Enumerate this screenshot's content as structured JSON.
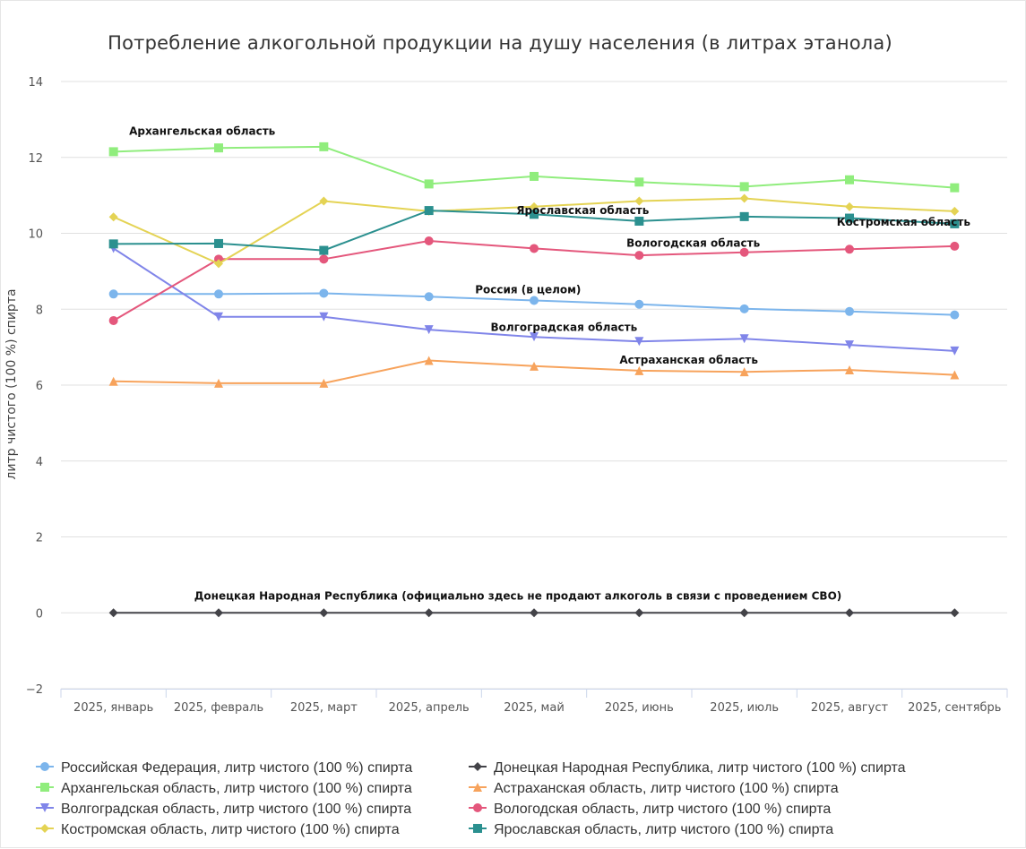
{
  "chart_data": {
    "type": "line",
    "title": "Потребление алкогольной продукции на душу населения (в литрах этанола)",
    "ylabel": "литр чистого (100 %) спирта",
    "xlabel": "",
    "ylim": [
      -2,
      14
    ],
    "yticks": [
      -2,
      0,
      2,
      4,
      6,
      8,
      10,
      12,
      14
    ],
    "grid": true,
    "legend_position": "bottom",
    "categories": [
      "2025, январь",
      "2025, февраль",
      "2025, март",
      "2025, апрель",
      "2025, май",
      "2025, июнь",
      "2025, июль",
      "2025, август",
      "2025, сентябрь"
    ],
    "series": [
      {
        "name": "Российская Федерация, литр чистого (100 %) спирта",
        "color": "#7cb5ec",
        "marker": "circle",
        "values": [
          8.4,
          8.4,
          8.42,
          8.33,
          8.23,
          8.13,
          8.01,
          7.94,
          7.85
        ]
      },
      {
        "name": "Донецкая Народная Республика, литр чистого (100 %) спирта",
        "color": "#434348",
        "marker": "diamond",
        "values": [
          0,
          0,
          0,
          0,
          0,
          0,
          0,
          0,
          0
        ]
      },
      {
        "name": "Архангельская область, литр чистого (100 %) спирта",
        "color": "#90ed7d",
        "marker": "square",
        "values": [
          12.15,
          12.25,
          12.28,
          11.3,
          11.5,
          11.35,
          11.23,
          11.41,
          11.2
        ]
      },
      {
        "name": "Астраханская область, литр чистого (100 %) спирта",
        "color": "#f7a35c",
        "marker": "triangle",
        "values": [
          6.1,
          6.05,
          6.05,
          6.65,
          6.5,
          6.38,
          6.35,
          6.4,
          6.27
        ]
      },
      {
        "name": "Волгоградская область, литр чистого (100 %) спирта",
        "color": "#8085e9",
        "marker": "triangle-down",
        "values": [
          9.6,
          7.8,
          7.8,
          7.46,
          7.27,
          7.15,
          7.22,
          7.06,
          6.9
        ]
      },
      {
        "name": "Вологодская область, литр чистого (100 %) спирта",
        "color": "#e4577c",
        "marker": "circle",
        "values": [
          7.7,
          9.32,
          9.32,
          9.8,
          9.6,
          9.42,
          9.5,
          9.58,
          9.66
        ]
      },
      {
        "name": "Костромская область, литр чистого (100 %) спирта",
        "color": "#e4d354",
        "marker": "diamond",
        "values": [
          10.43,
          9.2,
          10.85,
          10.58,
          10.7,
          10.85,
          10.92,
          10.7,
          10.58
        ]
      },
      {
        "name": "Ярославская область, литр чистого (100 %) спирта",
        "color": "#2b908f",
        "marker": "square",
        "values": [
          9.72,
          9.73,
          9.55,
          10.6,
          10.5,
          10.32,
          10.44,
          10.4,
          10.25
        ]
      }
    ],
    "annotations": [
      {
        "text": "Архангельская область",
        "series": 2,
        "index": 0
      },
      {
        "text": "Костромская область",
        "series": 6,
        "index": 8
      },
      {
        "text": "Ярославская область",
        "series": 7,
        "index": 5
      },
      {
        "text": "Вологодская область",
        "series": 5,
        "index": 6
      },
      {
        "text": "Россия (в целом)",
        "series": 0,
        "index": 5
      },
      {
        "text": "Волгоградская область",
        "series": 4,
        "index": 5
      },
      {
        "text": "Астраханская область",
        "series": 3,
        "index": 6
      },
      {
        "text": "Донецкая Народная Республика (официально здесь не продают алкоголь в связи с проведением СВО)",
        "series": 1,
        "index": 4
      }
    ]
  }
}
